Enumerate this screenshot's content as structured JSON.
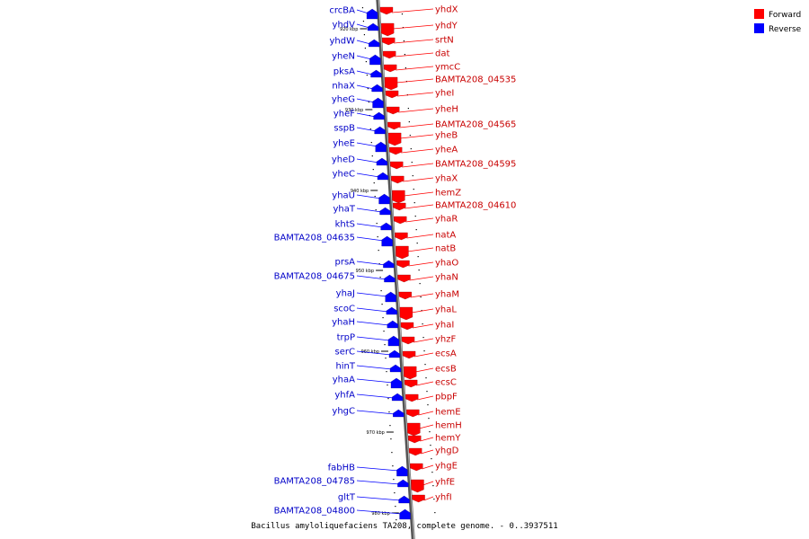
{
  "caption": "Bacillus amyloliquefaciens TA208, complete genome. - 0..3937511",
  "legend": [
    {
      "label": "Forward",
      "color": "#ff0000"
    },
    {
      "label": "Reverse",
      "color": "#0000ff"
    }
  ],
  "ticks": [
    "920 kbp",
    "930 kbp",
    "940 kbp",
    "950 kbp",
    "960 kbp",
    "970 kbp",
    "980 kbp"
  ],
  "reverse_genes": [
    "crcBA",
    "yhdV",
    "yhdW",
    "yheN",
    "pksA",
    "nhaX",
    "yheG",
    "yheF",
    "sspB",
    "yheE",
    "yheD",
    "yheC",
    "yhaU",
    "yhaT",
    "khtS",
    "BAMTA208_04635",
    "prsA",
    "BAMTA208_04675",
    "yhaJ",
    "scoC",
    "yhaH",
    "trpP",
    "serC",
    "hinT",
    "yhaA",
    "yhfA",
    "yhgC",
    "fabHB",
    "BAMTA208_04785",
    "gltT",
    "BAMTA208_04800"
  ],
  "forward_genes": [
    "yhdX",
    "yhdY",
    "srtN",
    "dat",
    "ymcC",
    "BAMTA208_04535",
    "yheI",
    "yheH",
    "BAMTA208_04565",
    "yheB",
    "yheA",
    "BAMTA208_04595",
    "yhaX",
    "hemZ",
    "BAMTA208_04610",
    "yhaR",
    "natA",
    "natB",
    "yhaO",
    "yhaN",
    "yhaM",
    "yhaL",
    "yhaI",
    "yhzF",
    "ecsA",
    "ecsB",
    "ecsC",
    "pbpF",
    "hemE",
    "hemH",
    "hemY",
    "yhgD",
    "yhgE",
    "yhfE",
    "yhfI"
  ]
}
